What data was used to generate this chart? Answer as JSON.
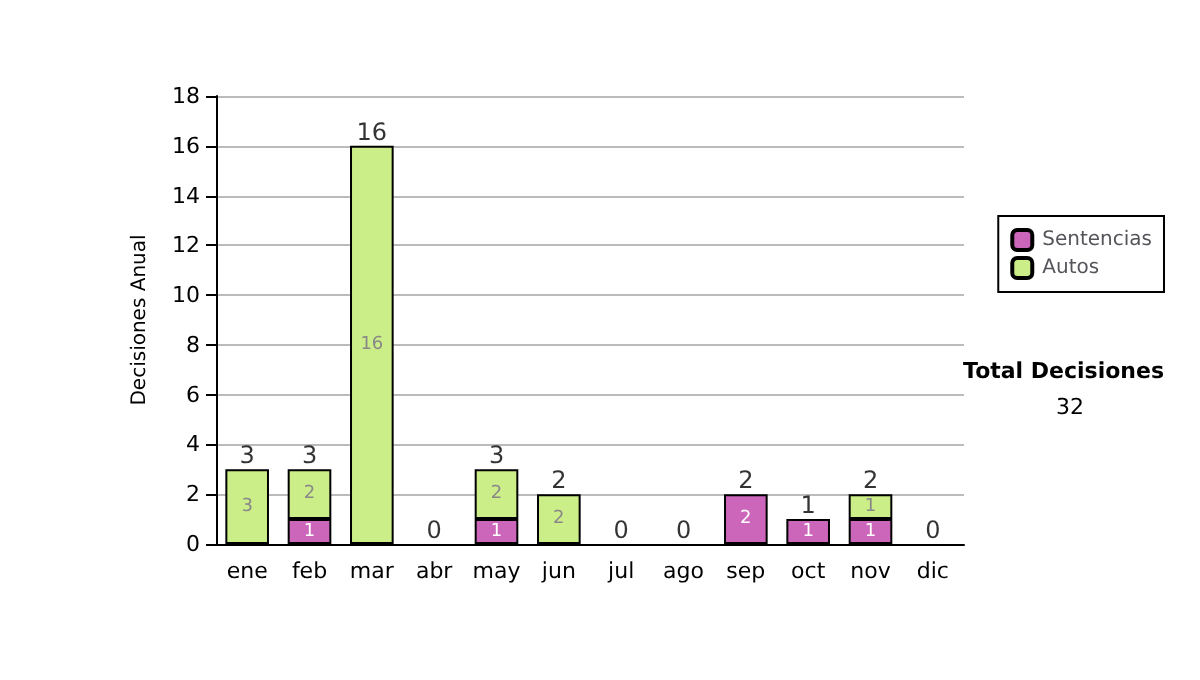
{
  "chart_data": {
    "type": "bar",
    "stacked": true,
    "ylabel": "Decisiones Anual",
    "categories": [
      "ene",
      "feb",
      "mar",
      "abr",
      "may",
      "jun",
      "jul",
      "ago",
      "sep",
      "oct",
      "nov",
      "dic"
    ],
    "series": [
      {
        "name": "Sentencias",
        "color": "#cc66bb",
        "values": [
          0,
          1,
          0,
          0,
          1,
          0,
          0,
          0,
          2,
          1,
          1,
          0
        ],
        "value_labels": [
          null,
          "1",
          null,
          null,
          "1",
          null,
          null,
          null,
          "2",
          "1",
          "1",
          null
        ]
      },
      {
        "name": "Autos",
        "color": "#ccee88",
        "values": [
          3,
          2,
          16,
          0,
          2,
          2,
          0,
          0,
          0,
          0,
          1,
          0
        ],
        "value_labels": [
          "3",
          "2",
          "16",
          null,
          "2",
          "2",
          null,
          null,
          null,
          null,
          "1",
          null
        ]
      }
    ],
    "totals": [
      "3",
      "3",
      "16",
      "0",
      "3",
      "2",
      "0",
      "0",
      "2",
      "1",
      "2",
      "0"
    ],
    "ylim": [
      0,
      18
    ],
    "yticks": [
      0,
      2,
      4,
      6,
      8,
      10,
      12,
      14,
      16,
      18
    ],
    "grid": "y",
    "legend": "right",
    "annotations": [
      "Total Decisiones",
      "32"
    ]
  }
}
